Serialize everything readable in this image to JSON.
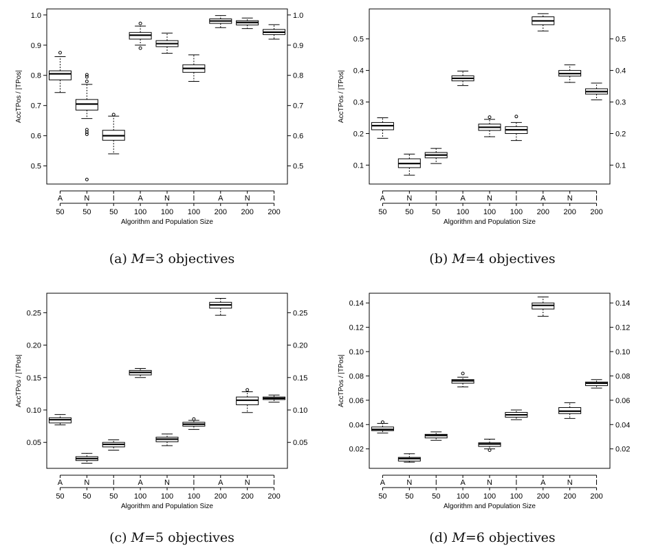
{
  "chart_data": [
    {
      "type": "boxplot",
      "caption": {
        "label": "(a)",
        "m_symbol": "M",
        "eq": "=3 objectives"
      },
      "ylabel": "AccTPos / |TPos|",
      "xlabel": "Algorithm and Population Size",
      "categories": [
        "A",
        "N",
        "I",
        "A",
        "N",
        "I",
        "A",
        "N",
        "I"
      ],
      "sizes": [
        "50",
        "50",
        "50",
        "100",
        "100",
        "100",
        "200",
        "200",
        "200"
      ],
      "ylim": [
        0.44,
        1.02
      ],
      "yticks": [
        0.5,
        0.6,
        0.7,
        0.8,
        0.9,
        1.0
      ],
      "ytick_labels": [
        "0.5",
        "0.6",
        "0.7",
        "0.8",
        "0.9",
        "1.0"
      ],
      "boxes": [
        {
          "min": 0.743,
          "q1": 0.785,
          "median": 0.805,
          "q3": 0.815,
          "max": 0.862,
          "outliers": [
            0.875
          ]
        },
        {
          "min": 0.657,
          "q1": 0.685,
          "median": 0.705,
          "q3": 0.72,
          "max": 0.77,
          "outliers": [
            0.455,
            0.605,
            0.612,
            0.62,
            0.78,
            0.795,
            0.802
          ]
        },
        {
          "min": 0.54,
          "q1": 0.585,
          "median": 0.6,
          "q3": 0.618,
          "max": 0.665,
          "outliers": [
            0.67
          ]
        },
        {
          "min": 0.9,
          "q1": 0.92,
          "median": 0.933,
          "q3": 0.942,
          "max": 0.963,
          "outliers": [
            0.89,
            0.972
          ]
        },
        {
          "min": 0.873,
          "q1": 0.895,
          "median": 0.905,
          "q3": 0.915,
          "max": 0.94,
          "outliers": []
        },
        {
          "min": 0.78,
          "q1": 0.81,
          "median": 0.823,
          "q3": 0.835,
          "max": 0.868,
          "outliers": []
        },
        {
          "min": 0.958,
          "q1": 0.972,
          "median": 0.98,
          "q3": 0.987,
          "max": 0.998,
          "outliers": []
        },
        {
          "min": 0.955,
          "q1": 0.967,
          "median": 0.975,
          "q3": 0.981,
          "max": 0.99,
          "outliers": []
        },
        {
          "min": 0.92,
          "q1": 0.935,
          "median": 0.943,
          "q3": 0.952,
          "max": 0.968,
          "outliers": []
        }
      ]
    },
    {
      "type": "boxplot",
      "caption": {
        "label": "(b)",
        "m_symbol": "M",
        "eq": "=4 objectives"
      },
      "ylabel": "AccTPos / |TPos|",
      "xlabel": "Algorithm and Population Size",
      "categories": [
        "A",
        "N",
        "I",
        "A",
        "N",
        "I",
        "A",
        "N",
        "I"
      ],
      "sizes": [
        "50",
        "50",
        "50",
        "100",
        "100",
        "100",
        "200",
        "200",
        "200"
      ],
      "ylim": [
        0.04,
        0.595
      ],
      "yticks": [
        0.1,
        0.2,
        0.3,
        0.4,
        0.5
      ],
      "ytick_labels": [
        "0.1",
        "0.2",
        "0.3",
        "0.4",
        "0.5"
      ],
      "boxes": [
        {
          "min": 0.185,
          "q1": 0.212,
          "median": 0.225,
          "q3": 0.235,
          "max": 0.25,
          "outliers": []
        },
        {
          "min": 0.068,
          "q1": 0.092,
          "median": 0.105,
          "q3": 0.12,
          "max": 0.135,
          "outliers": []
        },
        {
          "min": 0.105,
          "q1": 0.123,
          "median": 0.132,
          "q3": 0.14,
          "max": 0.153,
          "outliers": []
        },
        {
          "min": 0.352,
          "q1": 0.367,
          "median": 0.375,
          "q3": 0.383,
          "max": 0.398,
          "outliers": []
        },
        {
          "min": 0.19,
          "q1": 0.21,
          "median": 0.22,
          "q3": 0.23,
          "max": 0.245,
          "outliers": [
            0.252
          ]
        },
        {
          "min": 0.178,
          "q1": 0.2,
          "median": 0.212,
          "q3": 0.222,
          "max": 0.235,
          "outliers": [
            0.254
          ]
        },
        {
          "min": 0.525,
          "q1": 0.545,
          "median": 0.557,
          "q3": 0.57,
          "max": 0.58,
          "outliers": []
        },
        {
          "min": 0.362,
          "q1": 0.382,
          "median": 0.39,
          "q3": 0.4,
          "max": 0.418,
          "outliers": []
        },
        {
          "min": 0.307,
          "q1": 0.325,
          "median": 0.333,
          "q3": 0.342,
          "max": 0.36,
          "outliers": []
        }
      ]
    },
    {
      "type": "boxplot",
      "caption": {
        "label": "(c)",
        "m_symbol": "M",
        "eq": "=5 objectives"
      },
      "ylabel": "AccTPos / |TPos|",
      "xlabel": "Algorithm and Population Size",
      "categories": [
        "A",
        "N",
        "I",
        "A",
        "N",
        "I",
        "A",
        "N",
        "I"
      ],
      "sizes": [
        "50",
        "50",
        "50",
        "100",
        "100",
        "100",
        "200",
        "200",
        "200"
      ],
      "ylim": [
        0.01,
        0.28
      ],
      "yticks": [
        0.05,
        0.1,
        0.15,
        0.2,
        0.25
      ],
      "ytick_labels": [
        "0.05",
        "0.10",
        "0.15",
        "0.20",
        "0.25"
      ],
      "boxes": [
        {
          "min": 0.077,
          "q1": 0.08,
          "median": 0.085,
          "q3": 0.088,
          "max": 0.093,
          "outliers": []
        },
        {
          "min": 0.018,
          "q1": 0.022,
          "median": 0.025,
          "q3": 0.028,
          "max": 0.033,
          "outliers": []
        },
        {
          "min": 0.038,
          "q1": 0.043,
          "median": 0.047,
          "q3": 0.05,
          "max": 0.054,
          "outliers": []
        },
        {
          "min": 0.15,
          "q1": 0.154,
          "median": 0.158,
          "q3": 0.161,
          "max": 0.164,
          "outliers": []
        },
        {
          "min": 0.045,
          "q1": 0.051,
          "median": 0.055,
          "q3": 0.058,
          "max": 0.063,
          "outliers": []
        },
        {
          "min": 0.07,
          "q1": 0.075,
          "median": 0.078,
          "q3": 0.081,
          "max": 0.084,
          "outliers": [
            0.086
          ]
        },
        {
          "min": 0.246,
          "q1": 0.257,
          "median": 0.262,
          "q3": 0.266,
          "max": 0.272,
          "outliers": []
        },
        {
          "min": 0.096,
          "q1": 0.108,
          "median": 0.115,
          "q3": 0.12,
          "max": 0.128,
          "outliers": [
            0.131
          ]
        },
        {
          "min": 0.112,
          "q1": 0.116,
          "median": 0.118,
          "q3": 0.12,
          "max": 0.123,
          "outliers": []
        }
      ]
    },
    {
      "type": "boxplot",
      "caption": {
        "label": "(d)",
        "m_symbol": "M",
        "eq": "=6 objectives"
      },
      "ylabel": "AccTPos / |TPos|",
      "xlabel": "Algorithm and Population Size",
      "categories": [
        "A",
        "N",
        "I",
        "A",
        "N",
        "I",
        "A",
        "N",
        "I"
      ],
      "sizes": [
        "50",
        "50",
        "50",
        "100",
        "100",
        "100",
        "200",
        "200",
        "200"
      ],
      "ylim": [
        0.004,
        0.148
      ],
      "yticks": [
        0.02,
        0.04,
        0.06,
        0.08,
        0.1,
        0.12,
        0.14
      ],
      "ytick_labels": [
        "0.02",
        "0.04",
        "0.06",
        "0.08",
        "0.10",
        "0.12",
        "0.14"
      ],
      "boxes": [
        {
          "min": 0.033,
          "q1": 0.035,
          "median": 0.036,
          "q3": 0.038,
          "max": 0.041,
          "outliers": [
            0.042
          ]
        },
        {
          "min": 0.009,
          "q1": 0.01,
          "median": 0.012,
          "q3": 0.013,
          "max": 0.016,
          "outliers": []
        },
        {
          "min": 0.027,
          "q1": 0.029,
          "median": 0.031,
          "q3": 0.032,
          "max": 0.034,
          "outliers": []
        },
        {
          "min": 0.071,
          "q1": 0.074,
          "median": 0.076,
          "q3": 0.077,
          "max": 0.079,
          "outliers": [
            0.082
          ]
        },
        {
          "min": 0.02,
          "q1": 0.022,
          "median": 0.024,
          "q3": 0.025,
          "max": 0.028,
          "outliers": [
            0.019
          ]
        },
        {
          "min": 0.044,
          "q1": 0.046,
          "median": 0.048,
          "q3": 0.05,
          "max": 0.052,
          "outliers": []
        },
        {
          "min": 0.129,
          "q1": 0.135,
          "median": 0.138,
          "q3": 0.14,
          "max": 0.145,
          "outliers": []
        },
        {
          "min": 0.045,
          "q1": 0.049,
          "median": 0.051,
          "q3": 0.054,
          "max": 0.058,
          "outliers": []
        },
        {
          "min": 0.07,
          "q1": 0.072,
          "median": 0.074,
          "q3": 0.075,
          "max": 0.077,
          "outliers": []
        }
      ]
    }
  ]
}
